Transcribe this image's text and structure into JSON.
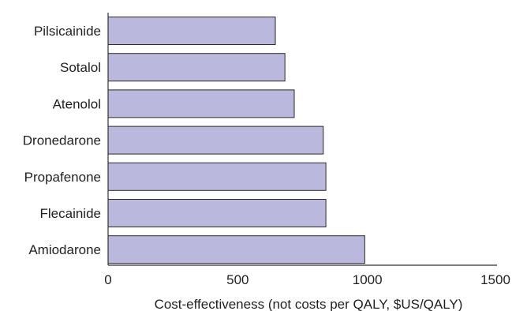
{
  "chart_data": {
    "type": "bar",
    "orientation": "horizontal",
    "categories": [
      "Pilsicainide",
      "Sotalol",
      "Atenolol",
      "Dronedarone",
      "Propafenone",
      "Flecainide",
      "Amiodarone"
    ],
    "values": [
      645,
      682,
      718,
      830,
      840,
      840,
      990
    ],
    "xlabel": "Cost-effectiveness (not costs per QALY, $US/QALY)",
    "xlim": [
      0,
      1500
    ],
    "xticks": [
      "0",
      "500",
      "1000",
      "1500"
    ],
    "grid": false,
    "colors": {
      "bar_fill": "#bbb8dd",
      "bar_stroke": "#2a2a2a",
      "axis": "#333333"
    }
  }
}
